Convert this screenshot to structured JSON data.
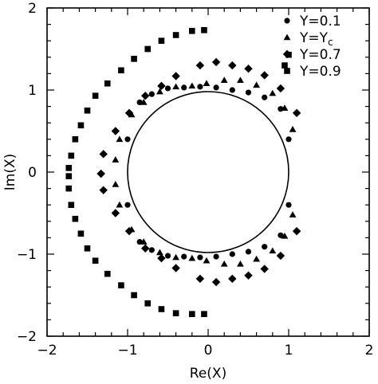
{
  "chart_data": {
    "type": "scatter",
    "title": "",
    "xlabel": "Re(X)",
    "ylabel": "Im(X)",
    "xlim": [
      -2,
      2
    ],
    "ylim": [
      -2,
      2
    ],
    "xticks": [
      -2,
      -1,
      0,
      1,
      2
    ],
    "yticks": [
      -2,
      -1,
      0,
      1,
      2
    ],
    "xtick_labels": [
      "−2",
      "−1",
      "0",
      "1",
      "2"
    ],
    "ytick_labels": [
      "−2",
      "−1",
      "0",
      "1",
      "2"
    ],
    "grid": false,
    "legend_position": "top-right",
    "reference_circle": {
      "center": [
        0,
        0
      ],
      "radius": 1
    },
    "series": [
      {
        "name": "Y=0.1",
        "label_main": "Y=0.1",
        "label_sub": "",
        "marker": "circle",
        "x": [
          1.0,
          0.9,
          0.7,
          0.5,
          0.3,
          0.1,
          -0.1,
          -0.3,
          -0.5,
          -0.7,
          -0.85,
          -1.0,
          -1.0,
          -0.85,
          -0.7,
          -0.5,
          -0.3,
          -0.1,
          0.1,
          0.3,
          0.5,
          0.7,
          0.9,
          1.0
        ],
        "y": [
          0.4,
          0.77,
          0.91,
          0.97,
          1.0,
          1.03,
          1.04,
          1.03,
          1.02,
          0.95,
          0.85,
          0.4,
          -0.4,
          -0.85,
          -0.95,
          -1.02,
          -1.03,
          -1.04,
          -1.03,
          -1.0,
          -0.97,
          -0.91,
          -0.77,
          -0.4
        ]
      },
      {
        "name": "Y=Y_c",
        "label_main": "Y=Y",
        "label_sub": "c",
        "marker": "triangle",
        "x": [
          1.05,
          0.95,
          0.8,
          0.6,
          0.4,
          0.2,
          -0.02,
          -0.2,
          -0.4,
          -0.6,
          -0.8,
          -0.95,
          -1.1,
          -1.15,
          -1.15,
          -1.1,
          -0.95,
          -0.8,
          -0.6,
          -0.4,
          -0.2,
          -0.02,
          0.2,
          0.4,
          0.6,
          0.8,
          0.95,
          1.05
        ],
        "y": [
          0.52,
          0.78,
          0.96,
          1.06,
          1.12,
          1.12,
          1.08,
          1.05,
          1.04,
          0.98,
          0.85,
          0.7,
          0.4,
          0.15,
          -0.15,
          -0.4,
          -0.7,
          -0.85,
          -0.98,
          -1.04,
          -1.05,
          -1.08,
          -1.12,
          -1.12,
          -1.06,
          -0.96,
          -0.78,
          -0.52
        ]
      },
      {
        "name": "Y=0.7",
        "label_main": "Y=0.7",
        "label_sub": "",
        "marker": "diamond",
        "x": [
          1.1,
          0.9,
          0.7,
          0.5,
          0.3,
          0.1,
          -0.1,
          -0.4,
          -0.58,
          -0.78,
          -0.98,
          -1.15,
          -1.3,
          -1.33,
          -1.33,
          -1.3,
          -1.15,
          -0.98,
          -0.78,
          -0.58,
          -0.4,
          -0.1,
          0.1,
          0.3,
          0.5,
          0.7,
          0.9,
          1.1
        ],
        "y": [
          0.72,
          1.02,
          1.18,
          1.26,
          1.3,
          1.34,
          1.3,
          1.17,
          1.05,
          0.93,
          0.72,
          0.5,
          0.22,
          -0.02,
          -0.02,
          -0.22,
          -0.5,
          -0.72,
          -0.93,
          -1.05,
          -1.17,
          -1.3,
          -1.34,
          -1.3,
          -1.26,
          -1.18,
          -1.02,
          -0.72
        ]
      },
      {
        "name": "Y=0.9",
        "label_main": "Y=0.9",
        "label_sub": "",
        "marker": "square",
        "x": [
          1.0,
          0.95,
          -0.05,
          -0.2,
          -0.4,
          -0.58,
          -0.75,
          -0.92,
          -1.08,
          -1.25,
          -1.4,
          -1.5,
          -1.58,
          -1.65,
          -1.7,
          -1.73,
          -1.73,
          -1.73,
          -1.7,
          -1.65,
          -1.58,
          -1.5,
          -1.4,
          -1.25,
          -1.08,
          -0.92,
          -0.75,
          -0.58,
          -0.4,
          -0.2,
          -0.05
        ],
        "y": [
          1.43,
          1.3,
          1.73,
          1.72,
          1.67,
          1.6,
          1.5,
          1.38,
          1.24,
          1.08,
          0.93,
          0.75,
          0.57,
          0.4,
          0.2,
          0.05,
          -0.05,
          -0.2,
          -0.4,
          -0.57,
          -0.75,
          -0.93,
          -1.08,
          -1.24,
          -1.38,
          -1.5,
          -1.6,
          -1.67,
          -1.72,
          -1.73,
          -1.73
        ]
      }
    ]
  }
}
